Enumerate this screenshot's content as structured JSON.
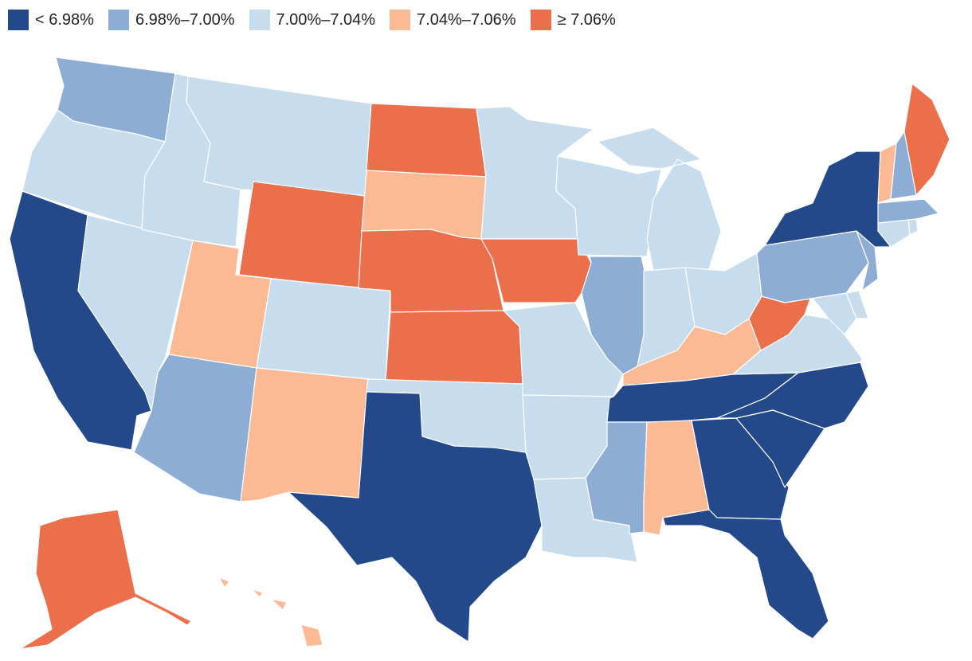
{
  "legend": {
    "items": [
      {
        "label": "< 6.98%",
        "color": "#24498b"
      },
      {
        "label": "6.98%–7.00%",
        "color": "#8dadd5"
      },
      {
        "label": "7.00%–7.04%",
        "color": "#c7ddee"
      },
      {
        "label": "7.04%–7.06%",
        "color": "#fbb994"
      },
      {
        "label": "≥ 7.06%",
        "color": "#ec6f4b"
      }
    ]
  },
  "map_data": {
    "type": "choropleth",
    "region": "United States",
    "states": {
      "WA": 1,
      "OR": 2,
      "CA": 0,
      "NV": 2,
      "ID": 2,
      "MT": 2,
      "WY": 4,
      "UT": 3,
      "AZ": 1,
      "CO": 2,
      "NM": 3,
      "ND": 4,
      "SD": 3,
      "NE": 4,
      "KS": 4,
      "OK": 2,
      "TX": 0,
      "MN": 2,
      "IA": 4,
      "MO": 2,
      "AR": 2,
      "LA": 2,
      "WI": 2,
      "IL": 1,
      "MI": 2,
      "IN": 2,
      "OH": 2,
      "KY": 3,
      "TN": 0,
      "MS": 1,
      "AL": 3,
      "GA": 0,
      "FL": 0,
      "SC": 0,
      "NC": 0,
      "VA": 2,
      "WV": 4,
      "MD": 2,
      "DE": 2,
      "PA": 1,
      "NJ": 1,
      "NY": 0,
      "CT": 2,
      "RI": 2,
      "MA": 1,
      "VT": 3,
      "NH": 1,
      "ME": 4,
      "AK": 4,
      "HI": 3
    }
  }
}
